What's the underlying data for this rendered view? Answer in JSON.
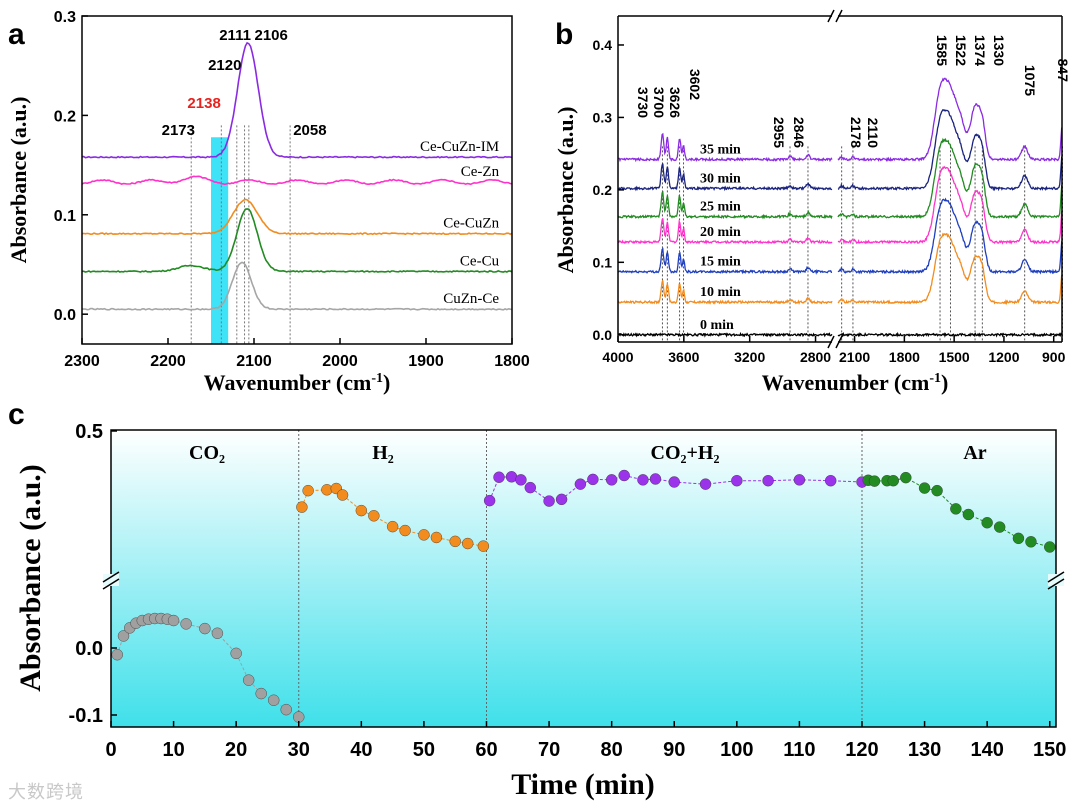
{
  "chart_data": [
    {
      "panel": "a",
      "type": "line",
      "xlabel": "Wavenumber (cm-1)",
      "ylabel": "Absorbance (a.u.)",
      "xlim": [
        2300,
        1800
      ],
      "ylim": [
        -0.03,
        0.3
      ],
      "x_reversed": true,
      "xticks": [
        2300,
        2200,
        2100,
        2000,
        1900,
        1800
      ],
      "yticks": [
        0.0,
        0.1,
        0.2,
        0.3
      ],
      "ytick_labels": [
        "0.0",
        "0.1",
        "0.2",
        "0.3"
      ],
      "highlight_band": [
        2150,
        2130
      ],
      "highlight_color": "#3fe3f7",
      "peak_labels": [
        {
          "text": "2173",
          "x": 2173,
          "color": "#000000"
        },
        {
          "text": "2138",
          "x": 2138,
          "color": "#e8231f"
        },
        {
          "text": "2120",
          "x": 2120,
          "color": "#000000"
        },
        {
          "text": "2111",
          "x": 2111,
          "color": "#000000"
        },
        {
          "text": "2106",
          "x": 2106,
          "color": "#000000"
        },
        {
          "text": "2058",
          "x": 2058,
          "color": "#000000"
        }
      ],
      "series": [
        {
          "name": "Ce-CuZn-IM",
          "color": "#8a2be2",
          "baseline": 0.158,
          "peaks": [
            {
              "center": 2107,
              "height": 0.115,
              "width": 12
            }
          ]
        },
        {
          "name": "Ce-Zn",
          "color": "#ff33cc",
          "baseline": 0.133,
          "peaks": [
            {
              "center": 2173,
              "height": 0.004,
              "width": 15
            }
          ]
        },
        {
          "name": "Ce-CuZn",
          "color": "#f28c1e",
          "baseline": 0.081,
          "peaks": [
            {
              "center": 2110,
              "height": 0.034,
              "width": 14
            }
          ]
        },
        {
          "name": "Ce-Cu",
          "color": "#228b22",
          "baseline": 0.043,
          "peaks": [
            {
              "center": 2108,
              "height": 0.063,
              "width": 12
            },
            {
              "center": 2173,
              "height": 0.006,
              "width": 15
            }
          ]
        },
        {
          "name": "CuZn-Ce",
          "color": "#a6a6a6",
          "baseline": 0.005,
          "peaks": [
            {
              "center": 2114,
              "height": 0.047,
              "width": 11
            }
          ]
        }
      ]
    },
    {
      "panel": "b",
      "type": "line",
      "xlabel": "Wavenumber (cm-1)",
      "ylabel": "Absorbance (a.u.)",
      "x_segments": [
        [
          4000,
          2700
        ],
        [
          2200,
          850
        ]
      ],
      "x_reversed": true,
      "ylim": [
        -0.01,
        0.44
      ],
      "xticks": [
        4000,
        3600,
        3200,
        2800,
        2100,
        1800,
        1500,
        1200,
        900
      ],
      "yticks": [
        0.0,
        0.1,
        0.2,
        0.3,
        0.4
      ],
      "ytick_labels": [
        "0.0",
        "0.1",
        "0.2",
        "0.3",
        "0.4"
      ],
      "peak_labels": [
        "3730",
        "3700",
        "3626",
        "3602",
        "2955",
        "2846",
        "2178",
        "2110",
        "1585",
        "1522",
        "1374",
        "1330",
        "1075",
        "847"
      ],
      "peak_positions": [
        3730,
        3700,
        3626,
        3602,
        2955,
        2846,
        2178,
        2110,
        1585,
        1522,
        1374,
        1330,
        1075,
        847
      ],
      "series": [
        {
          "name": "0 min",
          "color": "#000000",
          "baseline": 0.0,
          "scale": 0.0
        },
        {
          "name": "10 min",
          "color": "#f28c1e",
          "baseline": 0.045,
          "scale": 0.85
        },
        {
          "name": "15 min",
          "color": "#1f3fbf",
          "baseline": 0.087,
          "scale": 0.9
        },
        {
          "name": "20 min",
          "color": "#ff33cc",
          "baseline": 0.128,
          "scale": 0.93
        },
        {
          "name": "25 min",
          "color": "#228b22",
          "baseline": 0.163,
          "scale": 0.96
        },
        {
          "name": "30 min",
          "color": "#1a237e",
          "baseline": 0.202,
          "scale": 0.98
        },
        {
          "name": "35 min",
          "color": "#8a2be2",
          "baseline": 0.242,
          "scale": 1.0
        }
      ]
    },
    {
      "panel": "c",
      "type": "scatter",
      "xlabel": "Time (min)",
      "ylabel": "Absorbance (a.u.)",
      "xlim": [
        0,
        151
      ],
      "xticks": [
        0,
        10,
        20,
        30,
        40,
        50,
        60,
        70,
        80,
        90,
        100,
        110,
        120,
        130,
        140,
        150
      ],
      "yticks_lower": [
        0.0,
        -0.1
      ],
      "ytick_labels_lower": [
        "0.0",
        "-0.1"
      ],
      "ytick_upper": 0.5,
      "ytick_label_upper": "0.5",
      "axis_break": true,
      "region_dividers": [
        30,
        60,
        120
      ],
      "regions": [
        {
          "label": "CO₂",
          "range": [
            0,
            30
          ]
        },
        {
          "label": "H₂",
          "range": [
            30,
            60
          ]
        },
        {
          "label": "CO₂+H₂",
          "range": [
            60,
            120
          ]
        },
        {
          "label": "Ar",
          "range": [
            120,
            150
          ]
        }
      ],
      "series": [
        {
          "name": "CO2",
          "color": "#a0a0a0",
          "segment": "lower",
          "x": [
            1,
            2,
            3,
            4,
            5,
            6,
            7,
            8,
            9,
            10,
            12,
            15,
            17,
            20,
            22,
            24,
            26,
            28,
            30
          ],
          "y": [
            -0.01,
            0.018,
            0.03,
            0.037,
            0.041,
            0.043,
            0.044,
            0.044,
            0.043,
            0.041,
            0.036,
            0.029,
            0.022,
            -0.008,
            -0.048,
            -0.068,
            -0.078,
            -0.092,
            -0.103
          ]
        },
        {
          "name": "H2",
          "color": "#f28c1e",
          "segment": "upper",
          "x": [
            30.5,
            31.5,
            34.5,
            36,
            37,
            40,
            42,
            45,
            47,
            50,
            52,
            55,
            57,
            59.5
          ],
          "y": [
            0.322,
            0.36,
            0.362,
            0.365,
            0.35,
            0.314,
            0.302,
            0.277,
            0.268,
            0.258,
            0.252,
            0.243,
            0.238,
            0.232
          ]
        },
        {
          "name": "CO2+H2",
          "color": "#9a33ea",
          "segment": "upper",
          "x": [
            60.5,
            62,
            64,
            65.5,
            67,
            70,
            72,
            75,
            77,
            80,
            82,
            85,
            87,
            90,
            95,
            100,
            105,
            110,
            115,
            120
          ],
          "y": [
            0.337,
            0.391,
            0.392,
            0.385,
            0.367,
            0.336,
            0.34,
            0.375,
            0.386,
            0.385,
            0.395,
            0.385,
            0.387,
            0.38,
            0.375,
            0.383,
            0.383,
            0.385,
            0.383,
            0.38
          ]
        },
        {
          "name": "Ar",
          "color": "#228b22",
          "segment": "upper",
          "x": [
            121,
            122,
            124,
            125,
            127,
            130,
            132,
            135,
            137,
            140,
            142,
            145,
            147,
            150
          ],
          "y": [
            0.384,
            0.382,
            0.383,
            0.383,
            0.39,
            0.366,
            0.36,
            0.318,
            0.305,
            0.286,
            0.276,
            0.25,
            0.242,
            0.23
          ]
        }
      ]
    }
  ],
  "labels": {
    "panel_a": "a",
    "panel_b": "b",
    "panel_c": "c",
    "a_xlabel_main": "Wavenumber (cm",
    "a_xlabel_sup": "-1",
    "a_xlabel_end": ")",
    "a_ylabel": "Absorbance (a.u.)",
    "b_xlabel_main": "Wavenumber (cm",
    "b_xlabel_sup": "-1",
    "b_xlabel_end": ")",
    "b_ylabel": "Absorbance (a.u.)",
    "c_xlabel": "Time (min)",
    "c_ylabel": "Absorbance (a.u.)",
    "watermark": "大数跨境"
  },
  "colors": {
    "cyan_band": "#3fe3f7",
    "panel_c_gradient_top": "#ffffff",
    "panel_c_gradient_bottom": "#3fe0ea"
  }
}
